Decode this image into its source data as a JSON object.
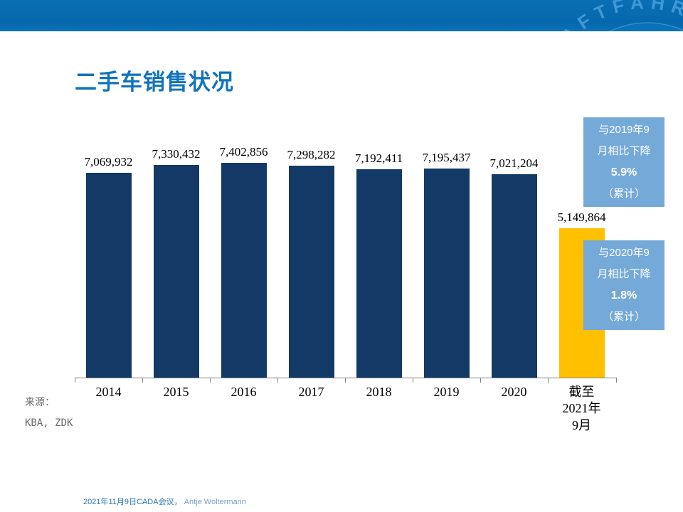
{
  "header": {
    "logo_arc_text": "AFTFAHR"
  },
  "title": "二手车销售状况",
  "chart_data": {
    "type": "bar",
    "title": "二手车销售状况",
    "categories": [
      "2014",
      "2015",
      "2016",
      "2017",
      "2018",
      "2019",
      "2020",
      "截至\n2021年\n9月"
    ],
    "values": [
      7069932,
      7330432,
      7402856,
      7298282,
      7192411,
      7195437,
      7021204,
      5149864
    ],
    "value_labels": [
      "7,069,932",
      "7,330,432",
      "7,402,856",
      "7,298,282",
      "7,192,411",
      "7,195,437",
      "7,021,204",
      "5,149,864"
    ],
    "bar_colors": [
      "#133A66",
      "#133A66",
      "#133A66",
      "#133A66",
      "#133A66",
      "#133A66",
      "#133A66",
      "#FFC000"
    ],
    "xlabel": "",
    "ylabel": "",
    "ylim": [
      0,
      7402856
    ],
    "gridlines": false,
    "legend": "none"
  },
  "annotations": {
    "box1": {
      "lines": [
        "与2019年9",
        "月相比下降",
        "5.9%",
        "（累计）"
      ],
      "bg": "#74A9D8"
    },
    "box2": {
      "lines": [
        "与2020年9",
        "月相比下降",
        "1.8%",
        "（累计）"
      ],
      "bg": "#74A9D8"
    }
  },
  "source": {
    "label": "来源：",
    "value": "KBA, ZDK"
  },
  "footer": {
    "date_event": "2021年11月9日CADA会议，",
    "author": "Antje Woltermann"
  },
  "colors": {
    "header_blue": "#0667AC",
    "title_blue": "#1173BC",
    "bar_navy": "#133A66",
    "bar_gold": "#FFC000",
    "callout_bg": "#74A9D8",
    "axis_gray": "#808080",
    "footer_date": "#2E75B6",
    "footer_author": "#7C9CC6"
  }
}
